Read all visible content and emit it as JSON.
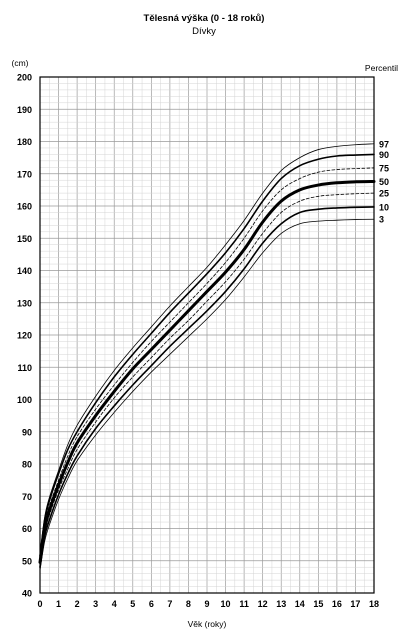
{
  "chart_data": {
    "type": "line",
    "title": "Tělesná výška (0 - 18 roků)",
    "subtitle": "Dívky",
    "ylabel": "(cm)",
    "xlabel": "Věk (roky)",
    "legend_title": "Percentil",
    "xlim": [
      0,
      18
    ],
    "ylim": [
      40,
      200
    ],
    "x_ticks": [
      0,
      1,
      2,
      3,
      4,
      5,
      6,
      7,
      8,
      9,
      10,
      11,
      12,
      13,
      14,
      15,
      16,
      17,
      18
    ],
    "y_ticks": [
      40,
      50,
      60,
      70,
      80,
      90,
      100,
      110,
      120,
      130,
      140,
      150,
      160,
      170,
      180,
      190,
      200
    ],
    "grid": true,
    "x": [
      0,
      0.25,
      0.5,
      1,
      1.5,
      2,
      3,
      4,
      5,
      6,
      7,
      8,
      9,
      10,
      11,
      12,
      13,
      14,
      15,
      16,
      17,
      18
    ],
    "series": [
      {
        "name": "97",
        "values": [
          52,
          63.5,
          69.5,
          78,
          86,
          92,
          101,
          109,
          116,
          122.5,
          129,
          135,
          141,
          148,
          155.5,
          164,
          171,
          175,
          177.5,
          178.5,
          179,
          179.3
        ]
      },
      {
        "name": "90",
        "values": [
          51.5,
          62.5,
          68.5,
          77,
          84.5,
          90,
          99,
          107,
          114,
          120.5,
          127,
          133,
          139,
          145.5,
          153,
          161.5,
          168.5,
          172.5,
          174.5,
          175.5,
          175.8,
          176
        ]
      },
      {
        "name": "75",
        "values": [
          50.5,
          61.5,
          67,
          75,
          82.5,
          88.5,
          97,
          104.5,
          111.5,
          118,
          124,
          130,
          136,
          142.5,
          150,
          158.5,
          165,
          168.5,
          170.5,
          171.3,
          171.6,
          171.8
        ]
      },
      {
        "name": "50",
        "values": [
          49.5,
          60,
          65.5,
          73.5,
          80.5,
          86.5,
          95,
          102.5,
          109.5,
          115.5,
          121.5,
          127.5,
          133.5,
          139.5,
          146.5,
          155,
          161.5,
          165,
          166.5,
          167.2,
          167.5,
          167.6
        ]
      },
      {
        "name": "25",
        "values": [
          48.5,
          58.5,
          64,
          72,
          78.5,
          84.5,
          93,
          100.5,
          107,
          113,
          119,
          124.5,
          130.5,
          136.5,
          143.5,
          151.5,
          158,
          161.5,
          163,
          163.5,
          163.8,
          164
        ]
      },
      {
        "name": "10",
        "values": [
          48,
          57.5,
          62.5,
          70.5,
          77,
          82.5,
          91,
          98,
          104.5,
          110.5,
          116.5,
          122,
          127.5,
          133.5,
          140.5,
          148.5,
          154.5,
          158,
          159,
          159.4,
          159.6,
          159.7
        ]
      },
      {
        "name": "3",
        "values": [
          47,
          56,
          61,
          69,
          75.5,
          81,
          89,
          96,
          102.5,
          108.5,
          114,
          119.5,
          125,
          131,
          138,
          145.5,
          151.5,
          154.5,
          155.3,
          155.6,
          155.8,
          155.9
        ]
      }
    ]
  }
}
